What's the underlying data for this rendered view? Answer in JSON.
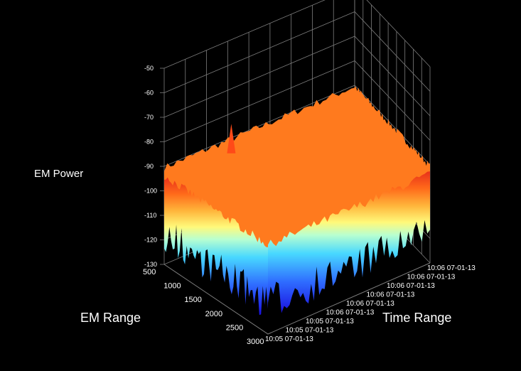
{
  "chart_data": {
    "type": "surface3d",
    "title": "",
    "zlabel": "EM Power",
    "xlabel": "EM Range",
    "ylabel": "Time Range",
    "z_ticks": [
      "-50",
      "-60",
      "-70",
      "-80",
      "-90",
      "-100",
      "-110",
      "-120",
      "-130"
    ],
    "x_ticks": [
      "500",
      "1000",
      "1500",
      "2000",
      "2500",
      "3000"
    ],
    "y_ticks": [
      "10:05 07-01-13",
      "10:05 07-01-13",
      "10:05 07-01-13",
      "10:06 07-01-13",
      "10:06 07-01-13",
      "10:06 07-01-13",
      "10:06 07-01-13",
      "10:06 07-01-13",
      "10:06 07-01-13"
    ],
    "zlim": [
      -130,
      -50
    ],
    "xlim": [
      500,
      3000
    ],
    "grid": true,
    "colormap": [
      "#1a10e0",
      "#2f6cff",
      "#48d8ff",
      "#b8ffd0",
      "#fff97a",
      "#ffb43a",
      "#ff6a1a",
      "#e8301a"
    ],
    "surface_level": -100,
    "surface_max": -92,
    "surface_min": -125,
    "peak_value": -80
  }
}
